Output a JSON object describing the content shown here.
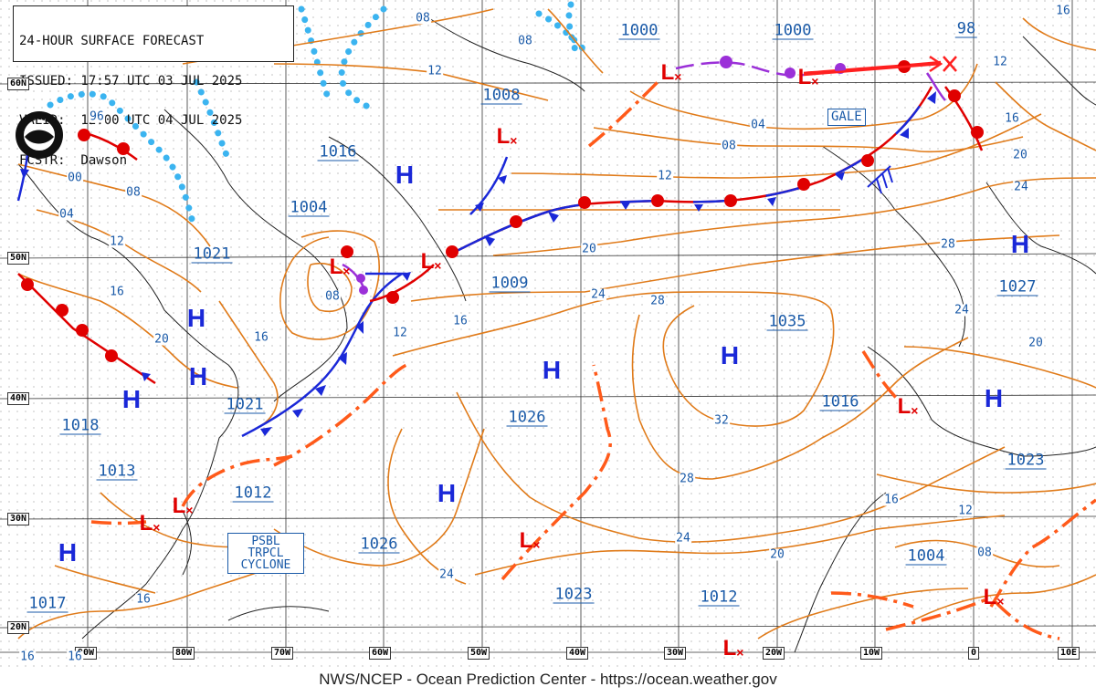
{
  "header": {
    "line1": "24-HOUR SURFACE FORECAST",
    "line2": "ISSUED: 17:57 UTC 03 JUL 2025",
    "line3": "VALID:  12:00 UTC 04 JUL 2025",
    "line4": "FCSTR:  Dawson"
  },
  "footer": "NWS/NCEP - Ocean Prediction Center - https://ocean.weather.gov",
  "latitude_labels": [
    "60N",
    "50N",
    "40N",
    "30N",
    "20N"
  ],
  "longitude_labels": [
    "90W",
    "80W",
    "70W",
    "60W",
    "50W",
    "40W",
    "30W",
    "20W",
    "10W",
    "0",
    "10E"
  ],
  "highs": {
    "symbol": "H",
    "centers": [
      {
        "id": "h-hudson",
        "pressure": "1016"
      },
      {
        "id": "h-great-lakes",
        "pressure": "1021"
      },
      {
        "id": "h-ohio",
        "pressure": ""
      },
      {
        "id": "h-southeast",
        "pressure": "1021"
      },
      {
        "id": "h-gulf",
        "pressure": "1017"
      },
      {
        "id": "h-central-atl",
        "pressure": "1026"
      },
      {
        "id": "h-west-atl",
        "pressure": "1026"
      },
      {
        "id": "h-azores",
        "pressure": "1035"
      },
      {
        "id": "h-europe",
        "pressure": "1027"
      },
      {
        "id": "h-iberia",
        "pressure": "1023"
      }
    ]
  },
  "lows": {
    "symbol": "L",
    "centers": [
      {
        "id": "l-iceland-w",
        "pressure": "1000"
      },
      {
        "id": "l-iceland-e",
        "pressure": "1000"
      },
      {
        "id": "l-labrador",
        "pressure": "1008"
      },
      {
        "id": "l-newfoundland",
        "pressure": "1009"
      },
      {
        "id": "l-gulf-stlawrence",
        "pressure": "1004"
      },
      {
        "id": "l-georgia",
        "pressure": "1012"
      },
      {
        "id": "l-florida",
        "pressure": "1013"
      },
      {
        "id": "l-mid-atl",
        "pressure": "1023"
      },
      {
        "id": "l-cape-verde",
        "pressure": "1012"
      },
      {
        "id": "l-portugal",
        "pressure": "1016"
      },
      {
        "id": "l-africa",
        "pressure": "1004"
      }
    ]
  },
  "other_pressure_labels": [
    "1018",
    "98",
    "96"
  ],
  "isobar_labels": [
    "08",
    "12",
    "96",
    "00",
    "08",
    "04",
    "12",
    "16",
    "20",
    "16",
    "08",
    "12",
    "16",
    "20",
    "24",
    "28",
    "24",
    "32",
    "28",
    "24",
    "20",
    "16",
    "12",
    "08",
    "04",
    "08",
    "12",
    "16",
    "20",
    "24",
    "28",
    "24",
    "20",
    "16",
    "12",
    "08",
    "16",
    "16",
    "16"
  ],
  "warnings": {
    "gale": "GALE",
    "cyclone_line1": "PSBL",
    "cyclone_line2": "TRPCL",
    "cyclone_line3": "CYCLONE"
  },
  "colors": {
    "isobar": "#e07b1a",
    "cold_front": "#1a28d8",
    "warm_front": "#e00000",
    "occluded_front": "#9b30d8",
    "trough": "#ff5a1a",
    "ice_edge": "#3bb4f0",
    "grid": "#333333",
    "label_blue": "#1a5aa8"
  }
}
